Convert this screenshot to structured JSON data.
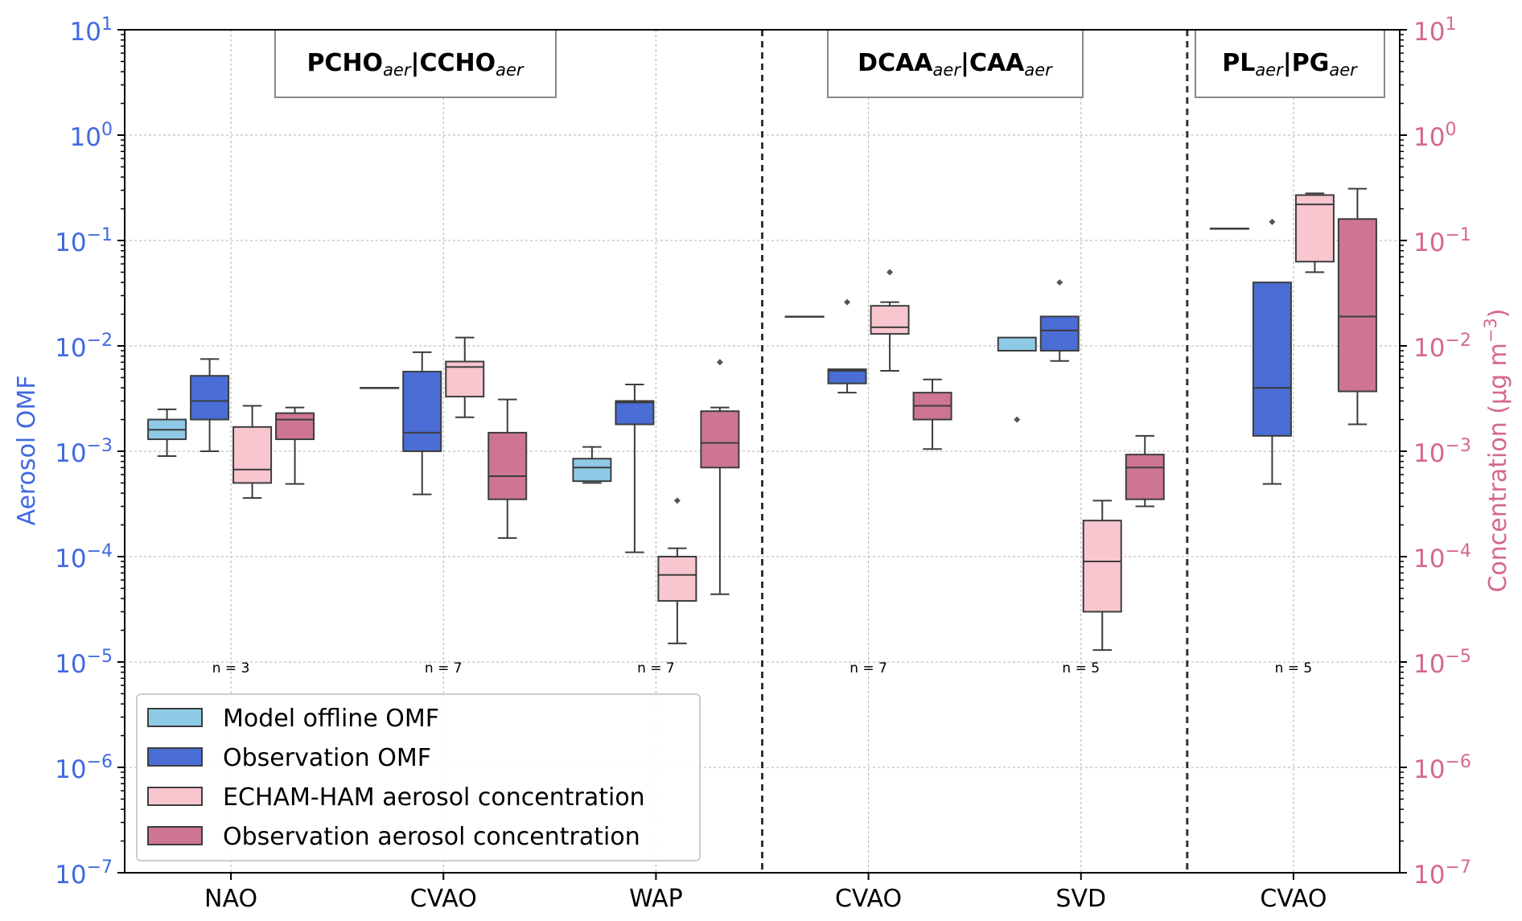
{
  "chart_data": {
    "type": "box",
    "y_scale": "log",
    "ylim": [
      1e-07,
      10
    ],
    "grid": true,
    "ylabel_left": "Aerosol OMF",
    "ylabel_right": "Concentration (µg m⁻³)",
    "ylabel_right_parts": {
      "base": "Concentration (µg m",
      "exp": "−3",
      "close": ")"
    },
    "left_axis_color": "#4169e1",
    "right_axis_color": "#d5688d",
    "y_ticks": [
      {
        "value": 1e-07,
        "mantissa": "10",
        "exp": "−7"
      },
      {
        "value": 1e-06,
        "mantissa": "10",
        "exp": "−6"
      },
      {
        "value": 1e-05,
        "mantissa": "10",
        "exp": "−5"
      },
      {
        "value": 0.0001,
        "mantissa": "10",
        "exp": "−4"
      },
      {
        "value": 0.001,
        "mantissa": "10",
        "exp": "−3"
      },
      {
        "value": 0.01,
        "mantissa": "10",
        "exp": "−2"
      },
      {
        "value": 0.1,
        "mantissa": "10",
        "exp": "−1"
      },
      {
        "value": 1,
        "mantissa": "10",
        "exp": "0"
      },
      {
        "value": 10,
        "mantissa": "10",
        "exp": "1"
      }
    ],
    "categories": [
      "NAO",
      "CVAO",
      "WAP",
      "CVAO",
      "SVD",
      "CVAO"
    ],
    "n_labels": [
      "n = 3",
      "n = 7",
      "n = 7",
      "n = 7",
      "n = 5",
      "n = 5"
    ],
    "panel_titles": [
      {
        "a": "PCHO",
        "sa": "aer",
        "sep": "|",
        "b": "CCHO",
        "sb": "aer"
      },
      {
        "a": "DCAA",
        "sa": "aer",
        "sep": "|",
        "b": "CAA",
        "sb": "aer"
      },
      {
        "a": "PL",
        "sa": "aer",
        "sep": "|",
        "b": "PG",
        "sb": "aer"
      }
    ],
    "series": [
      {
        "name": "Model offline OMF",
        "color": "#8ecae6"
      },
      {
        "name": "Observation OMF",
        "color": "#4a6dd6"
      },
      {
        "name": "ECHAM-HAM aerosol concentration",
        "color": "#f7c6cf"
      },
      {
        "name": "Observation aerosol concentration",
        "color": "#cd7592"
      }
    ],
    "legend_position": "lower-left",
    "boxes": [
      {
        "group": 0,
        "series": 0,
        "wlo": 0.0009,
        "q1": 0.0013,
        "med": 0.0016,
        "q3": 0.002,
        "whi": 0.0025,
        "fliers": []
      },
      {
        "group": 0,
        "series": 1,
        "wlo": 0.001,
        "q1": 0.002,
        "med": 0.003,
        "q3": 0.0052,
        "whi": 0.0075,
        "fliers": []
      },
      {
        "group": 0,
        "series": 2,
        "wlo": 0.00036,
        "q1": 0.0005,
        "med": 0.00067,
        "q3": 0.0017,
        "whi": 0.0027,
        "fliers": []
      },
      {
        "group": 0,
        "series": 3,
        "wlo": 0.00049,
        "q1": 0.0013,
        "med": 0.002,
        "q3": 0.0023,
        "whi": 0.0026,
        "fliers": []
      },
      {
        "group": 1,
        "series": 0,
        "wlo": 0.004,
        "q1": 0.004,
        "med": 0.004,
        "q3": 0.004,
        "whi": 0.004,
        "fliers": []
      },
      {
        "group": 1,
        "series": 1,
        "wlo": 0.00039,
        "q1": 0.001,
        "med": 0.0015,
        "q3": 0.0057,
        "whi": 0.0087,
        "fliers": []
      },
      {
        "group": 1,
        "series": 2,
        "wlo": 0.0021,
        "q1": 0.0033,
        "med": 0.0063,
        "q3": 0.0071,
        "whi": 0.012,
        "fliers": []
      },
      {
        "group": 1,
        "series": 3,
        "wlo": 0.00015,
        "q1": 0.00035,
        "med": 0.00058,
        "q3": 0.0015,
        "whi": 0.0031,
        "fliers": []
      },
      {
        "group": 2,
        "series": 0,
        "wlo": 0.0005,
        "q1": 0.00052,
        "med": 0.0007,
        "q3": 0.00085,
        "whi": 0.0011,
        "fliers": []
      },
      {
        "group": 2,
        "series": 1,
        "wlo": 0.00011,
        "q1": 0.0018,
        "med": 0.0029,
        "q3": 0.003,
        "whi": 0.0043,
        "fliers": []
      },
      {
        "group": 2,
        "series": 2,
        "wlo": 1.5e-05,
        "q1": 3.8e-05,
        "med": 6.7e-05,
        "q3": 0.0001,
        "whi": 0.00012,
        "fliers": [
          0.00034
        ]
      },
      {
        "group": 2,
        "series": 3,
        "wlo": 4.4e-05,
        "q1": 0.0007,
        "med": 0.0012,
        "q3": 0.0024,
        "whi": 0.0026,
        "fliers": [
          0.007
        ]
      },
      {
        "group": 3,
        "series": 0,
        "wlo": 0.019,
        "q1": 0.019,
        "med": 0.019,
        "q3": 0.019,
        "whi": 0.019,
        "fliers": []
      },
      {
        "group": 3,
        "series": 1,
        "wlo": 0.0036,
        "q1": 0.0044,
        "med": 0.0058,
        "q3": 0.006,
        "whi": 0.006,
        "fliers": [
          0.026
        ]
      },
      {
        "group": 3,
        "series": 2,
        "wlo": 0.0058,
        "q1": 0.013,
        "med": 0.015,
        "q3": 0.024,
        "whi": 0.026,
        "fliers": [
          0.05
        ]
      },
      {
        "group": 3,
        "series": 3,
        "wlo": 0.00105,
        "q1": 0.002,
        "med": 0.0027,
        "q3": 0.0036,
        "whi": 0.0048,
        "fliers": []
      },
      {
        "group": 4,
        "series": 0,
        "wlo": 0.009,
        "q1": 0.009,
        "med": 0.009,
        "q3": 0.012,
        "whi": 0.012,
        "fliers": [
          0.002
        ]
      },
      {
        "group": 4,
        "series": 1,
        "wlo": 0.0072,
        "q1": 0.009,
        "med": 0.014,
        "q3": 0.019,
        "whi": 0.019,
        "fliers": [
          0.04
        ]
      },
      {
        "group": 4,
        "series": 2,
        "wlo": 1.3e-05,
        "q1": 3e-05,
        "med": 9e-05,
        "q3": 0.00022,
        "whi": 0.00034,
        "fliers": []
      },
      {
        "group": 4,
        "series": 3,
        "wlo": 0.0003,
        "q1": 0.00035,
        "med": 0.0007,
        "q3": 0.00093,
        "whi": 0.0014,
        "fliers": []
      },
      {
        "group": 5,
        "series": 0,
        "wlo": 0.13,
        "q1": 0.13,
        "med": 0.13,
        "q3": 0.13,
        "whi": 0.13,
        "fliers": []
      },
      {
        "group": 5,
        "series": 1,
        "wlo": 0.00049,
        "q1": 0.0014,
        "med": 0.004,
        "q3": 0.04,
        "whi": 0.04,
        "fliers": [
          0.15
        ]
      },
      {
        "group": 5,
        "series": 2,
        "wlo": 0.05,
        "q1": 0.063,
        "med": 0.22,
        "q3": 0.27,
        "whi": 0.28,
        "fliers": []
      },
      {
        "group": 5,
        "series": 3,
        "wlo": 0.0018,
        "q1": 0.0037,
        "med": 0.019,
        "q3": 0.16,
        "whi": 0.31,
        "fliers": []
      }
    ]
  }
}
